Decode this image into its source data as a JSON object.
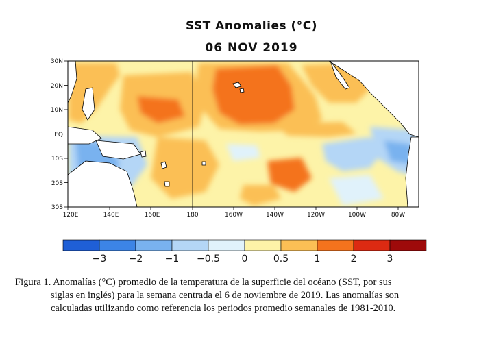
{
  "header": {
    "title": "SST Anomalies (°C)",
    "date": "06 NOV 2019"
  },
  "map": {
    "lat_labels": [
      "30N",
      "20N",
      "10N",
      "EQ",
      "10S",
      "20S",
      "30S"
    ],
    "lon_labels": [
      "120E",
      "140E",
      "160E",
      "180",
      "160W",
      "140W",
      "120W",
      "100W",
      "80W"
    ],
    "extent": {
      "lon_min_deg_east": 120,
      "lon_max_deg_east": 290,
      "lat_min": -30,
      "lat_max": 30
    },
    "reference_lines": [
      "equator",
      "dateline"
    ],
    "region": "Tropical Pacific Ocean"
  },
  "colorbar": {
    "tick_labels": [
      "−3",
      "−2",
      "−1",
      "−0.5",
      "0",
      "0.5",
      "1",
      "2",
      "3"
    ],
    "bins": [
      {
        "color": "#1f5fd6"
      },
      {
        "color": "#3c84e6"
      },
      {
        "color": "#79b2ef"
      },
      {
        "color": "#b4d6f6"
      },
      {
        "color": "#e0f2fb"
      },
      {
        "color": "#fdf3a8"
      },
      {
        "color": "#fbbf55"
      },
      {
        "color": "#f4731d"
      },
      {
        "color": "#dc2a12"
      },
      {
        "color": "#9e0a0a"
      }
    ]
  },
  "caption": {
    "line1": "Figura 1. Anomalías (°C) promedio de la temperatura de la superficie del océano (SST, por sus",
    "line2": "siglas en inglés) para la semana centrada el 6 de noviembre de 2019. Las anomalías son",
    "line3": "calculadas utilizando como referencia los periodos promedio semanales de 1981-2010."
  }
}
